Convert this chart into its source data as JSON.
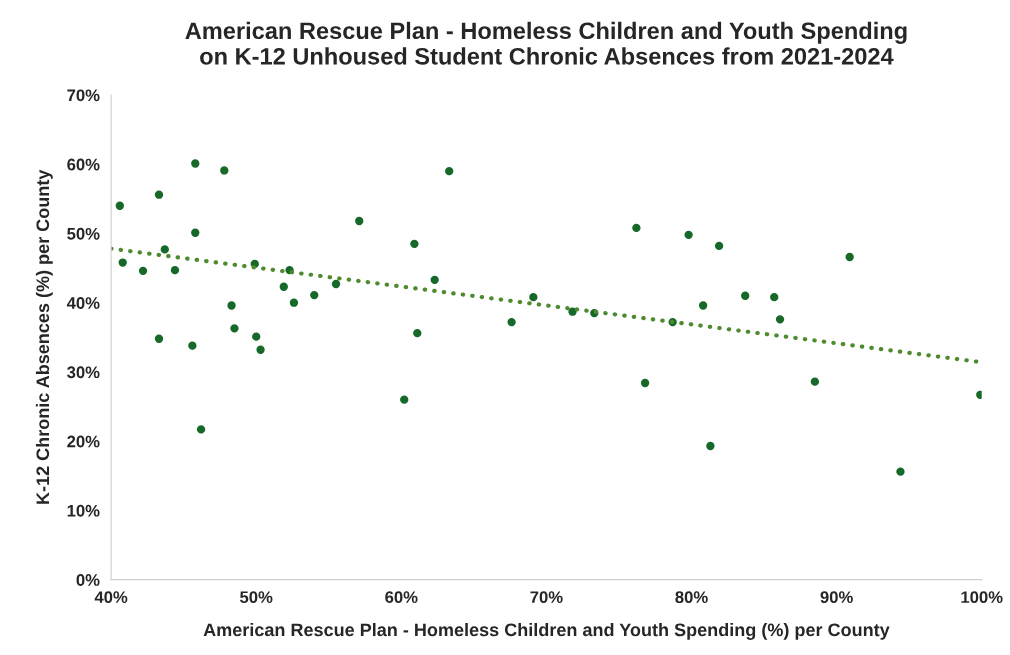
{
  "chart_data": {
    "type": "scatter",
    "title": "American Rescue Plan - Homeless Children and Youth Spending\non K-12 Unhoused Student Chronic Absences from 2021-2024",
    "xlabel": "American Rescue Plan - Homeless Children and Youth Spending (%) per County",
    "ylabel": "K-12 Chronic Absences (%) per County",
    "xlim": [
      40,
      100
    ],
    "ylim": [
      0,
      70
    ],
    "xticks": [
      {
        "value": 40,
        "label": "40%"
      },
      {
        "value": 50,
        "label": "50%"
      },
      {
        "value": 60,
        "label": "60%"
      },
      {
        "value": 70,
        "label": "70%"
      },
      {
        "value": 80,
        "label": "80%"
      },
      {
        "value": 90,
        "label": "90%"
      },
      {
        "value": 100,
        "label": "100%"
      }
    ],
    "yticks": [
      {
        "value": 0,
        "label": "0%"
      },
      {
        "value": 10,
        "label": "10%"
      },
      {
        "value": 20,
        "label": "20%"
      },
      {
        "value": 30,
        "label": "30%"
      },
      {
        "value": 40,
        "label": "40%"
      },
      {
        "value": 50,
        "label": "50%"
      },
      {
        "value": 60,
        "label": "60%"
      },
      {
        "value": 70,
        "label": "70%"
      }
    ],
    "grid": false,
    "legend": false,
    "marker": "circle",
    "series": [
      {
        "color": "#17692a",
        "x": [
          40.6,
          40.8,
          42.2,
          43.3,
          43.3,
          43.7,
          44.4,
          45.6,
          45.8,
          45.8,
          46.2,
          47.8,
          48.3,
          48.5,
          50.0,
          49.9,
          50.3,
          51.9,
          52.3,
          52.6,
          54.0,
          55.5,
          57.1,
          60.9,
          60.2,
          61.1,
          62.3,
          63.3,
          67.6,
          69.1,
          71.8,
          73.3,
          76.2,
          76.8,
          78.7,
          79.8,
          80.8,
          81.3,
          81.9,
          83.7,
          85.7,
          86.1,
          88.5,
          90.9,
          94.4,
          99.9
        ],
        "values": [
          54.0,
          45.8,
          44.6,
          55.6,
          34.8,
          47.7,
          44.7,
          33.8,
          50.1,
          60.1,
          21.7,
          59.1,
          39.6,
          36.3,
          35.1,
          45.6,
          33.2,
          42.3,
          44.7,
          40.0,
          41.1,
          42.7,
          51.8,
          48.5,
          26.0,
          35.6,
          43.3,
          59.0,
          37.2,
          40.8,
          38.7,
          38.5,
          50.8,
          28.4,
          37.2,
          49.8,
          39.6,
          19.3,
          48.2,
          41.0,
          40.8,
          37.6,
          28.6,
          46.6,
          15.6,
          26.7
        ]
      },
      {
        "type": "line",
        "color": "#4e8a2e",
        "line_style": "dotted",
        "marker": "none",
        "x": [
          40,
          100
        ],
        "values": [
          47.8,
          31.4
        ]
      }
    ]
  }
}
